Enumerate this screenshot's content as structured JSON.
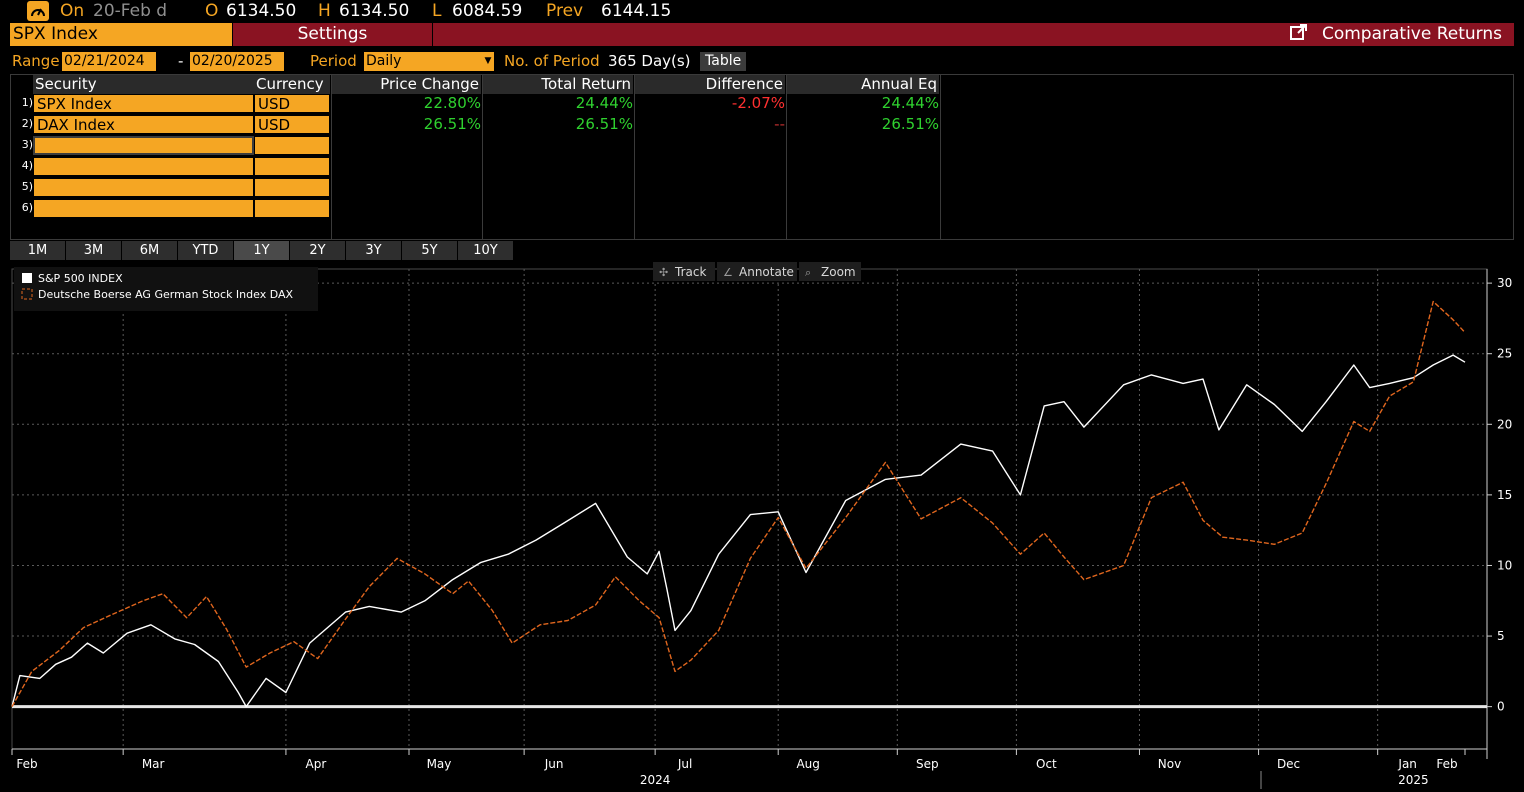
{
  "quote": {
    "on_label": "On",
    "date": "20-Feb d",
    "open_label": "O",
    "open": "6134.50",
    "high_label": "H",
    "high": "6134.50",
    "low_label": "L",
    "low": "6084.59",
    "prev_label": "Prev",
    "prev": "6144.15"
  },
  "header": {
    "security": "SPX Index",
    "settings": "Settings",
    "title": "Comparative Returns"
  },
  "range": {
    "label": "Range",
    "start": "02/21/2024",
    "dash": "-",
    "end": "02/20/2025",
    "period_label": "Period",
    "period": "Daily",
    "num_period_label": "No. of Period",
    "num_period": "365 Day(s)",
    "table_button": "Table"
  },
  "table": {
    "columns": [
      "Security",
      "Currency",
      "Price Change",
      "Total Return",
      "Difference",
      "Annual Eq"
    ],
    "rows": [
      {
        "num": "1)",
        "security": "SPX Index",
        "currency": "USD",
        "price_change": "22.80%",
        "total_return": "24.44%",
        "difference": "-2.07%",
        "annual_eq": "24.44%"
      },
      {
        "num": "2)",
        "security": "DAX Index",
        "currency": "USD",
        "price_change": "26.51%",
        "total_return": "26.51%",
        "difference": "--",
        "annual_eq": "26.51%"
      },
      {
        "num": "3)",
        "security": "",
        "currency": "",
        "price_change": "",
        "total_return": "",
        "difference": "",
        "annual_eq": ""
      },
      {
        "num": "4)",
        "security": "",
        "currency": "",
        "price_change": "",
        "total_return": "",
        "difference": "",
        "annual_eq": ""
      },
      {
        "num": "5)",
        "security": "",
        "currency": "",
        "price_change": "",
        "total_return": "",
        "difference": "",
        "annual_eq": ""
      },
      {
        "num": "6)",
        "security": "",
        "currency": "",
        "price_change": "",
        "total_return": "",
        "difference": "",
        "annual_eq": ""
      }
    ]
  },
  "period_tabs": [
    "1M",
    "3M",
    "6M",
    "YTD",
    "1Y",
    "2Y",
    "3Y",
    "5Y",
    "10Y"
  ],
  "selected_period": "1Y",
  "toolbar": {
    "track": "Track",
    "annotate": "Annotate",
    "zoom": "Zoom"
  },
  "colors": {
    "amber": "#f5a623",
    "header_red": "#8a1322",
    "spx_line": "#ffffff",
    "dax_line": "#e0661e",
    "positive": "#2fd12f",
    "negative": "#ff3030"
  },
  "chart_data": {
    "type": "line",
    "title": "",
    "xlabel": "",
    "ylabel": "",
    "x_range": [
      "2024-02-20",
      "2025-02-20"
    ],
    "ylim": [
      -3,
      31
    ],
    "yticks": [
      0,
      5,
      10,
      15,
      20,
      25,
      30
    ],
    "months": [
      "Feb",
      "Mar",
      "Apr",
      "May",
      "Jun",
      "Jul",
      "Aug",
      "Sep",
      "Oct",
      "Nov",
      "Dec",
      "Jan",
      "Feb"
    ],
    "month_dates": [
      "2024-02-20",
      "2024-03-19",
      "2024-04-29",
      "2024-05-30",
      "2024-06-28",
      "2024-07-31",
      "2024-08-31",
      "2024-09-30",
      "2024-10-30",
      "2024-11-30",
      "2024-12-30",
      "2025-01-29",
      "2025-02-20"
    ],
    "years": [
      {
        "label": "2024",
        "date": "2024-07-31"
      },
      {
        "label": "2025",
        "date": "2025-02-07"
      }
    ],
    "grid": true,
    "legend_position": "top-left",
    "zero_line": true,
    "series": [
      {
        "name": "S&P 500 INDEX",
        "style": "solid",
        "color": "#ffffff",
        "points": [
          [
            "2024-02-20",
            0
          ],
          [
            "2024-02-22",
            2.2
          ],
          [
            "2024-02-27",
            2.0
          ],
          [
            "2024-03-02",
            3.0
          ],
          [
            "2024-03-06",
            3.5
          ],
          [
            "2024-03-10",
            4.5
          ],
          [
            "2024-03-14",
            3.8
          ],
          [
            "2024-03-20",
            5.2
          ],
          [
            "2024-03-26",
            5.8
          ],
          [
            "2024-04-01",
            4.8
          ],
          [
            "2024-04-06",
            4.4
          ],
          [
            "2024-04-12",
            3.2
          ],
          [
            "2024-04-17",
            1.0
          ],
          [
            "2024-04-19",
            0.0
          ],
          [
            "2024-04-24",
            2.0
          ],
          [
            "2024-04-29",
            1.0
          ],
          [
            "2024-05-05",
            4.5
          ],
          [
            "2024-05-14",
            6.7
          ],
          [
            "2024-05-20",
            7.1
          ],
          [
            "2024-05-28",
            6.7
          ],
          [
            "2024-06-03",
            7.5
          ],
          [
            "2024-06-10",
            9.0
          ],
          [
            "2024-06-17",
            10.2
          ],
          [
            "2024-06-24",
            10.8
          ],
          [
            "2024-07-01",
            11.8
          ],
          [
            "2024-07-08",
            13.0
          ],
          [
            "2024-07-16",
            14.4
          ],
          [
            "2024-07-24",
            10.6
          ],
          [
            "2024-07-29",
            9.4
          ],
          [
            "2024-08-01",
            11.0
          ],
          [
            "2024-08-03",
            8.3
          ],
          [
            "2024-08-05",
            5.4
          ],
          [
            "2024-08-09",
            6.8
          ],
          [
            "2024-08-16",
            10.8
          ],
          [
            "2024-08-24",
            13.6
          ],
          [
            "2024-08-31",
            13.8
          ],
          [
            "2024-09-07",
            9.5
          ],
          [
            "2024-09-17",
            14.6
          ],
          [
            "2024-09-27",
            16.1
          ],
          [
            "2024-10-06",
            16.4
          ],
          [
            "2024-10-16",
            18.6
          ],
          [
            "2024-10-24",
            18.1
          ],
          [
            "2024-10-31",
            15.0
          ],
          [
            "2024-11-06",
            21.3
          ],
          [
            "2024-11-11",
            21.6
          ],
          [
            "2024-11-16",
            19.8
          ],
          [
            "2024-11-26",
            22.8
          ],
          [
            "2024-12-03",
            23.5
          ],
          [
            "2024-12-11",
            22.9
          ],
          [
            "2024-12-16",
            23.2
          ],
          [
            "2024-12-20",
            19.6
          ],
          [
            "2024-12-27",
            22.8
          ],
          [
            "2025-01-03",
            21.4
          ],
          [
            "2025-01-10",
            19.5
          ],
          [
            "2025-01-16",
            21.6
          ],
          [
            "2025-01-23",
            24.2
          ],
          [
            "2025-01-27",
            22.6
          ],
          [
            "2025-02-01",
            22.9
          ],
          [
            "2025-02-07",
            23.3
          ],
          [
            "2025-02-12",
            24.2
          ],
          [
            "2025-02-17",
            24.9
          ],
          [
            "2025-02-20",
            24.4
          ]
        ]
      },
      {
        "name": "Deutsche Boerse AG German Stock Index DAX",
        "style": "dashed",
        "color": "#e0661e",
        "points": [
          [
            "2024-02-20",
            0
          ],
          [
            "2024-02-25",
            2.5
          ],
          [
            "2024-03-03",
            4.0
          ],
          [
            "2024-03-09",
            5.6
          ],
          [
            "2024-03-16",
            6.5
          ],
          [
            "2024-03-24",
            7.5
          ],
          [
            "2024-03-29",
            8.0
          ],
          [
            "2024-04-04",
            6.3
          ],
          [
            "2024-04-09",
            7.8
          ],
          [
            "2024-04-14",
            5.5
          ],
          [
            "2024-04-19",
            2.8
          ],
          [
            "2024-04-25",
            3.8
          ],
          [
            "2024-05-01",
            4.6
          ],
          [
            "2024-05-07",
            3.4
          ],
          [
            "2024-05-14",
            6.2
          ],
          [
            "2024-05-20",
            8.5
          ],
          [
            "2024-05-27",
            10.5
          ],
          [
            "2024-06-03",
            9.4
          ],
          [
            "2024-06-10",
            8.0
          ],
          [
            "2024-06-14",
            8.9
          ],
          [
            "2024-06-20",
            6.8
          ],
          [
            "2024-06-25",
            4.5
          ],
          [
            "2024-07-02",
            5.8
          ],
          [
            "2024-07-09",
            6.1
          ],
          [
            "2024-07-16",
            7.2
          ],
          [
            "2024-07-21",
            9.2
          ],
          [
            "2024-07-27",
            7.5
          ],
          [
            "2024-08-01",
            6.3
          ],
          [
            "2024-08-05",
            2.5
          ],
          [
            "2024-08-09",
            3.3
          ],
          [
            "2024-08-16",
            5.4
          ],
          [
            "2024-08-24",
            10.5
          ],
          [
            "2024-08-31",
            13.4
          ],
          [
            "2024-09-07",
            9.8
          ],
          [
            "2024-09-17",
            13.4
          ],
          [
            "2024-09-27",
            17.3
          ],
          [
            "2024-10-06",
            13.3
          ],
          [
            "2024-10-16",
            14.8
          ],
          [
            "2024-10-24",
            13.0
          ],
          [
            "2024-10-31",
            10.8
          ],
          [
            "2024-11-06",
            12.3
          ],
          [
            "2024-11-11",
            10.6
          ],
          [
            "2024-11-16",
            9.0
          ],
          [
            "2024-11-26",
            10.0
          ],
          [
            "2024-12-03",
            14.8
          ],
          [
            "2024-12-11",
            15.9
          ],
          [
            "2024-12-16",
            13.2
          ],
          [
            "2024-12-21",
            12.0
          ],
          [
            "2024-12-27",
            11.8
          ],
          [
            "2025-01-03",
            11.5
          ],
          [
            "2025-01-10",
            12.3
          ],
          [
            "2025-01-16",
            15.8
          ],
          [
            "2025-01-23",
            20.2
          ],
          [
            "2025-01-27",
            19.5
          ],
          [
            "2025-02-01",
            22.0
          ],
          [
            "2025-02-07",
            23.0
          ],
          [
            "2025-02-12",
            28.7
          ],
          [
            "2025-02-17",
            27.4
          ],
          [
            "2025-02-20",
            26.5
          ]
        ]
      }
    ]
  }
}
